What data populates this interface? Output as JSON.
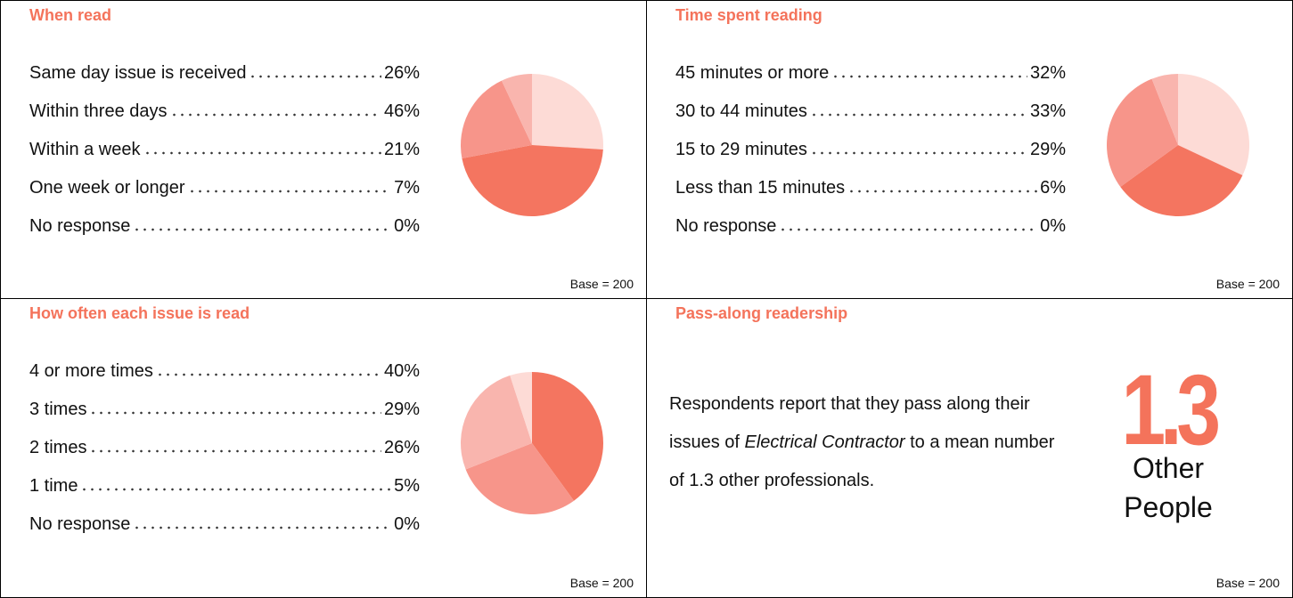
{
  "chart_data": [
    {
      "type": "pie",
      "title": "When read",
      "categories": [
        "Same day issue is received",
        "Within three days",
        "Within a week",
        "One week or longer",
        "No response"
      ],
      "values": [
        26,
        46,
        21,
        7,
        0
      ],
      "value_labels": [
        "26%",
        "46%",
        "21%",
        "7%",
        "0%"
      ],
      "colors": [
        "#fddbd6",
        "#f47560",
        "#f7958a",
        "#f9b5ae",
        "#fddbd6"
      ],
      "note": "Base = 200"
    },
    {
      "type": "pie",
      "title": "Time spent reading",
      "categories": [
        "45 minutes or more",
        "30 to 44 minutes",
        "15 to 29 minutes",
        "Less than 15 minutes",
        "No response"
      ],
      "values": [
        32,
        33,
        29,
        6,
        0
      ],
      "value_labels": [
        "32%",
        "33%",
        "29%",
        "6%",
        "0%"
      ],
      "colors": [
        "#fddbd6",
        "#f47560",
        "#f7958a",
        "#f9b5ae",
        "#fddbd6"
      ],
      "note": "Base = 200"
    },
    {
      "type": "pie",
      "title": "How often each issue is read",
      "categories": [
        "4 or more times",
        "3 times",
        "2 times",
        "1 time",
        "No response"
      ],
      "values": [
        40,
        29,
        26,
        5,
        0
      ],
      "value_labels": [
        "40%",
        "29%",
        "26%",
        "5%",
        "0%"
      ],
      "colors": [
        "#f47560",
        "#f7958a",
        "#f9b5ae",
        "#fddbd6",
        "#fddbd6"
      ],
      "note": "Base = 200"
    }
  ],
  "pass_along": {
    "title": "Pass-along readership",
    "text_before": "Respondents report that they pass along their issues of ",
    "emphasis": "Electrical Contractor",
    "text_after": " to a mean number of 1.3 other professionals.",
    "figure": "1.3",
    "figure_caption": [
      "Other",
      "People"
    ],
    "note": "Base = 200"
  }
}
